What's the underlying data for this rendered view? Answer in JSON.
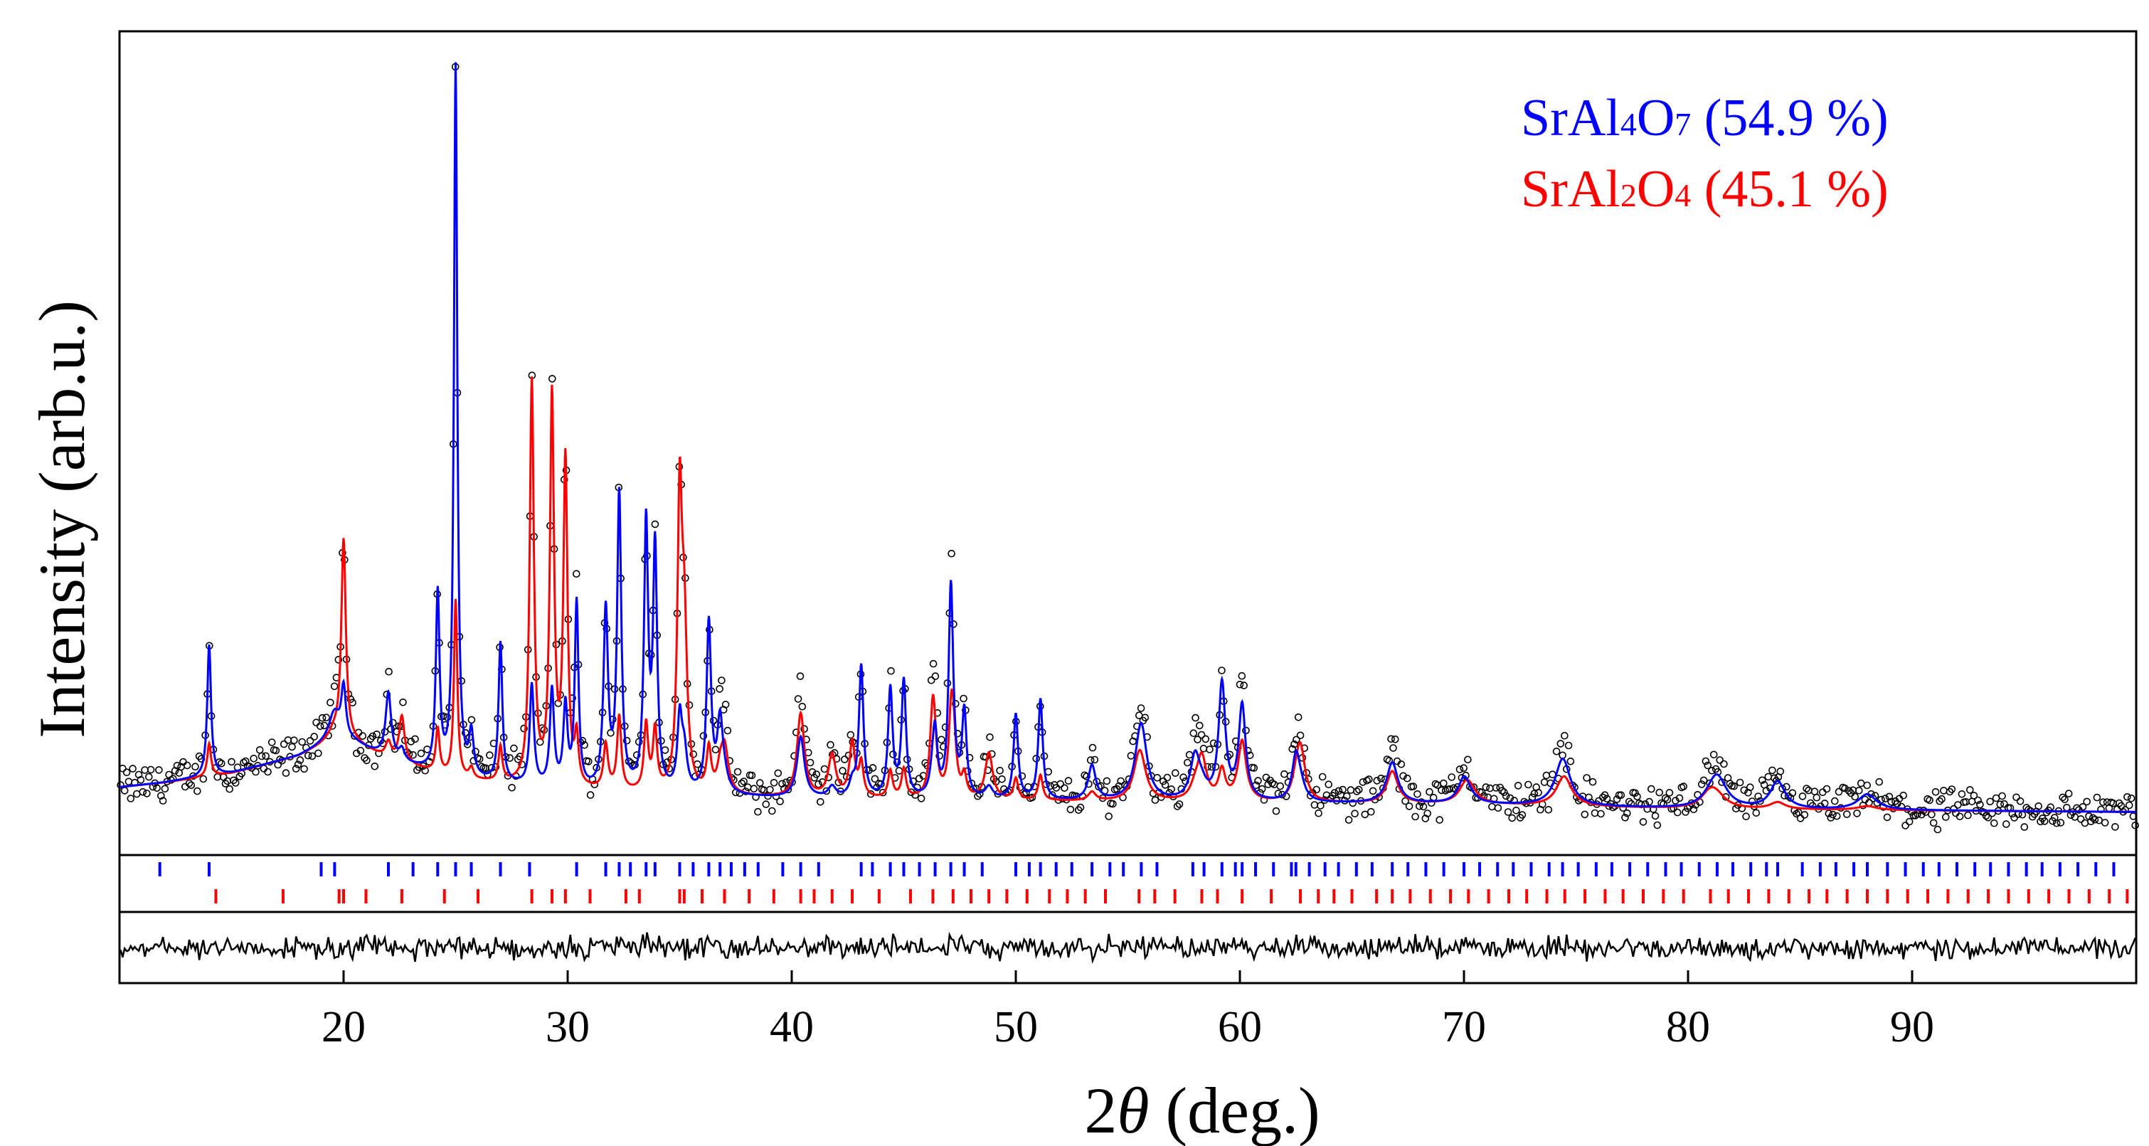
{
  "chart_data": {
    "type": "line",
    "title": "",
    "xlabel_prefix": "2",
    "xlabel_symbol": "θ",
    "xlabel_suffix": " (deg.)",
    "ylabel": "Intensity (arb.u.)",
    "xlim": [
      10,
      100
    ],
    "ylim": [
      0,
      1000
    ],
    "xticks": [
      20,
      30,
      40,
      50,
      60,
      70,
      80,
      90
    ],
    "xtick_labels": [
      "20",
      "30",
      "40",
      "50",
      "60",
      "70",
      "80",
      "90"
    ],
    "background": [
      [
        10,
        60
      ],
      [
        12,
        66
      ],
      [
        15,
        78
      ],
      [
        18,
        100
      ],
      [
        19.5,
        120
      ],
      [
        20.5,
        116
      ],
      [
        22,
        95
      ],
      [
        25,
        70
      ],
      [
        30,
        55
      ],
      [
        40,
        45
      ],
      [
        50,
        42
      ],
      [
        60,
        40
      ],
      [
        70,
        38
      ],
      [
        80,
        32
      ],
      [
        90,
        30
      ],
      [
        100,
        28
      ]
    ],
    "series": [
      {
        "name": "SrAl4O7",
        "phase_fraction": "54.9 %",
        "color": "#0000ff",
        "peaks": [
          [
            14.0,
            170,
            0.1
          ],
          [
            19.6,
            35,
            0.3
          ],
          [
            22.0,
            85,
            0.15
          ],
          [
            24.2,
            230,
            0.1
          ],
          [
            25.0,
            920,
            0.09
          ],
          [
            25.7,
            55,
            0.12
          ],
          [
            27.0,
            180,
            0.1
          ],
          [
            30.4,
            240,
            0.1
          ],
          [
            31.7,
            230,
            0.12
          ],
          [
            32.3,
            380,
            0.11
          ],
          [
            33.5,
            340,
            0.11
          ],
          [
            33.9,
            310,
            0.11
          ],
          [
            36.3,
            220,
            0.12
          ],
          [
            36.8,
            90,
            0.15
          ],
          [
            40.4,
            55,
            0.2
          ],
          [
            43.1,
            170,
            0.12
          ],
          [
            44.4,
            140,
            0.12
          ],
          [
            45.0,
            150,
            0.12
          ],
          [
            46.4,
            70,
            0.12
          ],
          [
            47.1,
            260,
            0.12
          ],
          [
            47.7,
            110,
            0.12
          ],
          [
            50.0,
            110,
            0.12
          ],
          [
            51.1,
            130,
            0.12
          ],
          [
            53.4,
            45,
            0.2
          ],
          [
            55.6,
            90,
            0.3
          ],
          [
            58.0,
            55,
            0.25
          ],
          [
            59.2,
            150,
            0.18
          ],
          [
            60.1,
            110,
            0.18
          ],
          [
            62.5,
            55,
            0.2
          ],
          [
            66.8,
            45,
            0.3
          ],
          [
            70.0,
            30,
            0.3
          ],
          [
            74.4,
            55,
            0.4
          ],
          [
            81.3,
            40,
            0.5
          ],
          [
            84.0,
            35,
            0.4
          ],
          [
            88.0,
            20,
            0.5
          ]
        ]
      },
      {
        "name": "SrAl2O4",
        "phase_fraction": "45.1 %",
        "color": "#ff0000",
        "peaks": [
          [
            20.0,
            260,
            0.12
          ],
          [
            22.6,
            60,
            0.15
          ],
          [
            28.4,
            520,
            0.11
          ],
          [
            29.3,
            500,
            0.11
          ],
          [
            29.9,
            420,
            0.11
          ],
          [
            35.0,
            360,
            0.12
          ],
          [
            35.2,
            200,
            0.15
          ],
          [
            37.0,
            60,
            0.2
          ],
          [
            40.4,
            95,
            0.2
          ],
          [
            41.8,
            55,
            0.2
          ],
          [
            42.7,
            70,
            0.15
          ],
          [
            46.3,
            120,
            0.15
          ],
          [
            47.2,
            90,
            0.15
          ],
          [
            48.8,
            60,
            0.2
          ],
          [
            55.5,
            45,
            0.3
          ],
          [
            58.3,
            55,
            0.25
          ],
          [
            60.1,
            50,
            0.25
          ],
          [
            62.7,
            70,
            0.25
          ],
          [
            66.8,
            30,
            0.3
          ],
          [
            70.2,
            25,
            0.4
          ],
          [
            74.5,
            25,
            0.4
          ],
          [
            81.0,
            20,
            0.5
          ]
        ]
      }
    ],
    "reflections": {
      "SrAl4O7": [
        11.8,
        14.0,
        19.0,
        19.6,
        22.0,
        23.1,
        24.2,
        25.0,
        25.7,
        27.0,
        28.3,
        30.4,
        31.7,
        32.3,
        32.8,
        33.5,
        33.9,
        35.0,
        35.6,
        36.3,
        36.8,
        37.3,
        37.9,
        38.5,
        39.6,
        40.4,
        41.2,
        43.1,
        43.6,
        44.4,
        45.0,
        45.7,
        46.4,
        47.1,
        47.7,
        48.5,
        50.0,
        50.6,
        51.1,
        51.8,
        52.5,
        53.4,
        54.2,
        54.8,
        55.6,
        56.3,
        57.9,
        58.4,
        59.2,
        59.8,
        60.1,
        60.7,
        61.5,
        62.3,
        62.5,
        63.1,
        63.8,
        64.4,
        65.2,
        65.9,
        66.8,
        67.5,
        68.3,
        69.1,
        70.0,
        70.7,
        71.5,
        72.2,
        73.0,
        73.8,
        74.4,
        75.1,
        75.9,
        76.6,
        77.4,
        78.2,
        79.0,
        79.7,
        80.5,
        81.3,
        82.0,
        82.8,
        83.5,
        84.0,
        85.1,
        85.9,
        86.6,
        87.4,
        88.0,
        88.9,
        89.7,
        90.5,
        91.2,
        92.0,
        92.8,
        93.5,
        94.3,
        95.1,
        95.8,
        96.6,
        97.4,
        98.2,
        99.0
      ],
      "SrAl2O4": [
        14.3,
        17.3,
        19.8,
        20.0,
        21.0,
        22.6,
        24.5,
        26.0,
        28.4,
        29.3,
        29.9,
        31.0,
        32.6,
        33.2,
        35.0,
        35.2,
        36.0,
        37.0,
        38.1,
        39.2,
        40.4,
        41.0,
        41.8,
        42.7,
        43.9,
        45.3,
        46.3,
        47.2,
        48.0,
        48.8,
        49.6,
        50.5,
        51.5,
        52.3,
        53.1,
        54.0,
        55.5,
        56.2,
        57.1,
        58.3,
        59.0,
        60.1,
        61.4,
        62.7,
        63.5,
        64.2,
        65.0,
        66.1,
        66.8,
        67.6,
        68.5,
        69.4,
        70.2,
        71.1,
        72.0,
        72.8,
        73.7,
        74.5,
        75.4,
        76.3,
        77.1,
        78.0,
        78.9,
        79.8,
        81.0,
        81.8,
        82.7,
        83.6,
        84.5,
        85.4,
        86.2,
        87.1,
        88.0,
        88.9,
        89.8,
        90.7,
        91.6,
        92.5,
        93.4,
        94.3,
        95.2,
        96.1,
        97.0,
        97.9,
        98.8,
        99.6
      ]
    },
    "legend": [
      {
        "formula": [
          "Sr",
          "Al",
          "4",
          "O",
          "7"
        ],
        "value": " (54.9 %)",
        "color": "#0000ff"
      },
      {
        "formula": [
          "Sr",
          "Al",
          "2",
          "O",
          "4"
        ],
        "value": " (45.1 %)",
        "color": "#ff0000"
      }
    ],
    "legend_position": "top-right",
    "marker_symbol": "open-circle",
    "observed_color": "#000000",
    "difference_color": "#000000"
  }
}
